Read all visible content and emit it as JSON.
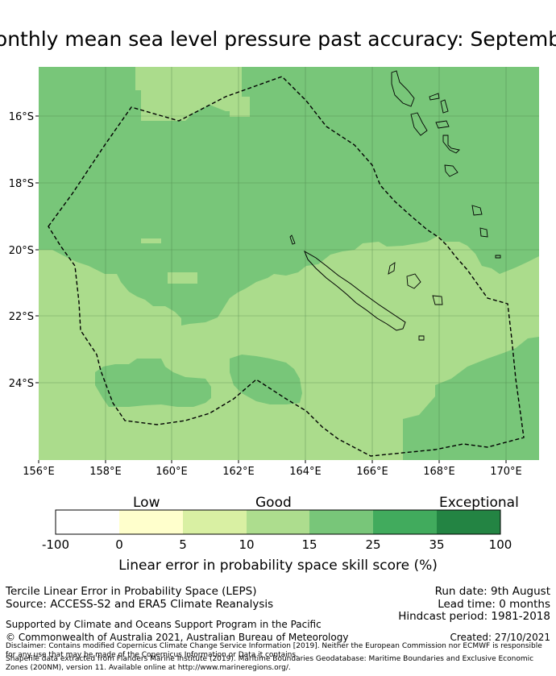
{
  "title": "onthly mean sea level pressure past accuracy: Septemb",
  "map": {
    "lon_ticks": [
      "156°E",
      "158°E",
      "160°E",
      "162°E",
      "164°E",
      "166°E",
      "168°E",
      "170°E"
    ],
    "lat_ticks": [
      "16°S",
      "18°S",
      "20°S",
      "22°S",
      "24°S"
    ],
    "colors": {
      "light": "#abdc8c",
      "mid": "#78c679",
      "outline": "#000000"
    }
  },
  "colorbar": {
    "headers": {
      "low": "Low",
      "good": "Good",
      "exceptional": "Exceptional"
    },
    "ticks": [
      "-100",
      "0",
      "5",
      "10",
      "15",
      "25",
      "35",
      "100"
    ],
    "colors": [
      "#ffffff",
      "#ffffcc",
      "#d9f0a3",
      "#addd8e",
      "#78c679",
      "#41ab5d",
      "#238443"
    ],
    "label": "Linear error in probability space skill score (%)"
  },
  "footer": {
    "left1": "Tercile Linear Error in Probability Space (LEPS)",
    "left2": "Source: ACCESS-S2 and ERA5 Climate Reanalysis",
    "right1": "Run date: 9th August",
    "right2": "Lead time: 0 months",
    "right3": "Hindcast period: 1981-2018",
    "supported": "Supported by Climate and Oceans Support Program in the Pacific",
    "copyright": "© Commonwealth of Australia 2021, Australian Bureau of Meteorology",
    "created": "Created: 27/10/2021",
    "disclaimer": "Disclaimer: Contains modified Copernicus Climate Change Service Information [2019]. Neither the European Commission nor ECMWF is responsible for any use that may be made of the Copernicus Information or Data it contains.",
    "shapefile": "Shapefile data extracted from Flanders Marine Institute (2019). Maritime Boundaries Geodatabase: Maritime Boundaries and Exclusive Economic Zones (200NM), version 11. Available online at http://www.marineregions.org/."
  }
}
